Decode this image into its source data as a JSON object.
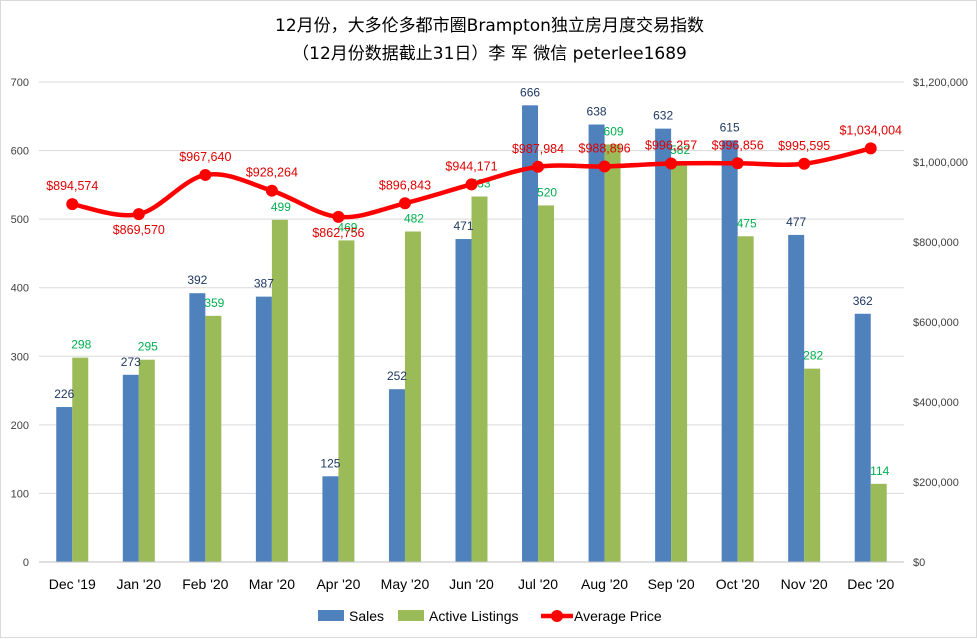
{
  "chart_data": {
    "type": "bar",
    "title": "12月份，大多伦多都市圈Brampton独立房月度交易指数",
    "subtitle": "（12月份数据截止31日）李 军  微信 peterlee1689",
    "categories": [
      "Dec '19",
      "Jan '20",
      "Feb '20",
      "Mar '20",
      "Apr '20",
      "May '20",
      "Jun '20",
      "Jul '20",
      "Aug '20",
      "Sep '20",
      "Oct '20",
      "Nov '20",
      "Dec '20"
    ],
    "series": [
      {
        "name": "Sales",
        "type": "bar",
        "axis": "left",
        "color": "#4f81bd",
        "values": [
          226,
          273,
          392,
          387,
          125,
          252,
          471,
          666,
          638,
          632,
          615,
          477,
          362
        ],
        "labels": [
          "226",
          "273",
          "392",
          "387",
          "125",
          "252",
          "471",
          "666",
          "638",
          "632",
          "615",
          "477",
          "362"
        ]
      },
      {
        "name": "Active Listings",
        "type": "bar",
        "axis": "left",
        "color": "#9bbb59",
        "values": [
          298,
          295,
          359,
          499,
          469,
          482,
          533,
          520,
          609,
          582,
          475,
          282,
          114
        ],
        "labels": [
          "298",
          "295",
          "359",
          "499",
          "469",
          "482",
          "533",
          "520",
          "609",
          "582",
          "475",
          "282",
          "114"
        ]
      },
      {
        "name": "Average Price",
        "type": "line",
        "axis": "right",
        "color": "#ff0000",
        "values": [
          894574,
          869570,
          967640,
          928264,
          862756,
          896843,
          944171,
          987984,
          988896,
          996257,
          996856,
          995595,
          1034004
        ],
        "labels": [
          "$894,574",
          "$869,570",
          "$967,640",
          "$928,264",
          "$862,756",
          "$896,843",
          "$944,171",
          "$987,984",
          "$988,896",
          "$996,257",
          "$996,856",
          "$995,595",
          "$1,034,004"
        ]
      }
    ],
    "y_left": {
      "min": 0,
      "max": 700,
      "ticks": [
        "0",
        "100",
        "200",
        "300",
        "400",
        "500",
        "600",
        "700"
      ]
    },
    "y_right": {
      "min": 0,
      "max": 1200000,
      "ticks": [
        "$0",
        "$200,000",
        "$400,000",
        "$600,000",
        "$800,000",
        "$1,000,000",
        "$1,200,000"
      ]
    },
    "grid": true,
    "legend_position": "bottom"
  }
}
